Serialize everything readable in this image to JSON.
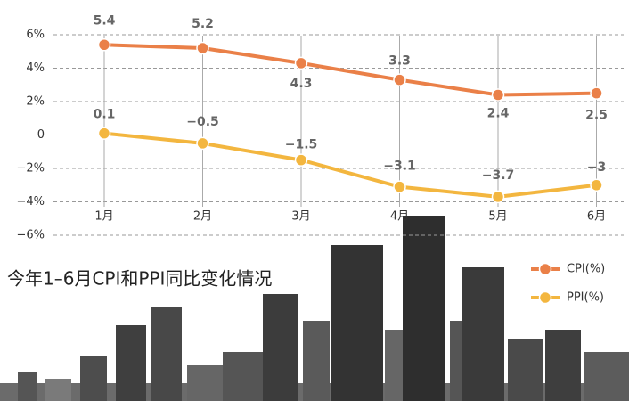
{
  "chart_data": {
    "type": "line",
    "title": "今年1–6月CPI和PPI同比变化情况",
    "categories": [
      "1月",
      "2月",
      "3月",
      "4月",
      "5月",
      "6月"
    ],
    "series": [
      {
        "name": "CPI(%)",
        "color": "#ea8048",
        "values": [
          5.4,
          5.2,
          4.3,
          3.3,
          2.4,
          2.5
        ]
      },
      {
        "name": "PPI(%)",
        "color": "#f3b63f",
        "values": [
          0.1,
          -0.5,
          -1.5,
          -3.1,
          -3.7,
          -3
        ],
        "value_labels": [
          "0.1",
          "−0.5",
          "−1.5",
          "−3.1",
          "−3.7",
          "−3"
        ]
      }
    ],
    "ylim": [
      -6,
      6
    ],
    "yticks": [
      {
        "value": 6,
        "label": "6%"
      },
      {
        "value": 4,
        "label": "4%"
      },
      {
        "value": 2,
        "label": "2%"
      },
      0,
      {
        "value": -2,
        "label": "−2%"
      },
      {
        "value": -4,
        "label": "−4%"
      },
      {
        "value": -6,
        "label": "−6%"
      }
    ],
    "grid": true
  }
}
